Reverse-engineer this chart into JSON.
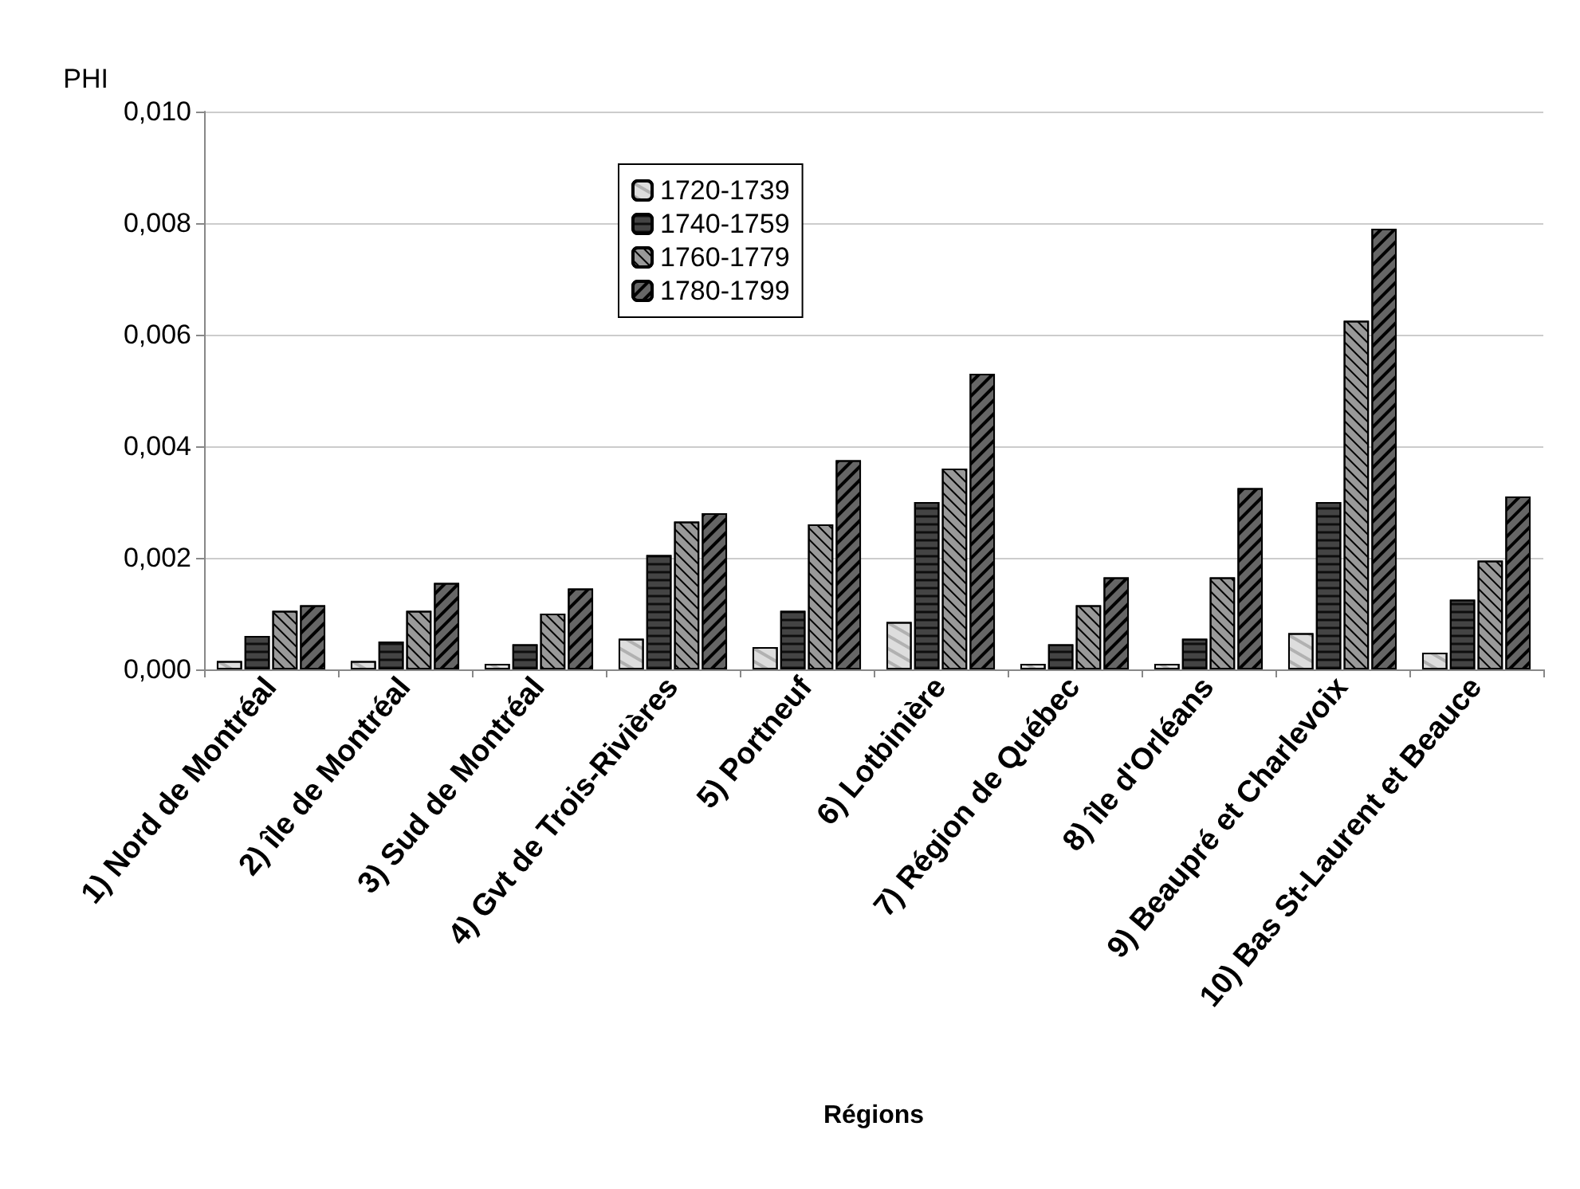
{
  "chart_data": {
    "type": "bar",
    "ylabel": "PHI",
    "xlabel": "Régions",
    "categories": [
      "1) Nord de Montréal",
      "2) île de Montréal",
      "3) Sud de Montréal",
      "4) Gvt de Trois-Rivières",
      "5) Portneuf",
      "6) Lotbinière",
      "7) Région de Québec",
      "8) île d'Orléans",
      "9) Beaupré et Charlevoix",
      "10) Bas St-Laurent et Beauce"
    ],
    "series": [
      {
        "name": "1720-1739",
        "color": "#dddddd",
        "values": [
          0.00015,
          0.00015,
          0.0001,
          0.00055,
          0.0004,
          0.00085,
          0.0001,
          0.0001,
          0.00065,
          0.0003
        ]
      },
      {
        "name": "1740-1759",
        "color": "#444444",
        "values": [
          0.0006,
          0.0005,
          0.00045,
          0.00205,
          0.00105,
          0.003,
          0.00045,
          0.00055,
          0.003,
          0.00125
        ]
      },
      {
        "name": "1760-1779",
        "color": "#999999",
        "values": [
          0.00105,
          0.00105,
          0.001,
          0.00265,
          0.0026,
          0.0036,
          0.00115,
          0.00165,
          0.00625,
          0.00195
        ]
      },
      {
        "name": "1780-1799",
        "color": "#666666",
        "values": [
          0.00115,
          0.00155,
          0.00145,
          0.0028,
          0.00375,
          0.0053,
          0.00165,
          0.00325,
          0.0079,
          0.0031
        ]
      }
    ],
    "ylim": [
      0,
      0.01
    ],
    "yticks": [
      {
        "value": 0,
        "label": "0,000"
      },
      {
        "value": 0.002,
        "label": "0,002"
      },
      {
        "value": 0.004,
        "label": "0,004"
      },
      {
        "value": 0.006,
        "label": "0,006"
      },
      {
        "value": 0.008,
        "label": "0,008"
      },
      {
        "value": 0.01,
        "label": "0,010"
      }
    ],
    "grid": "y",
    "legend": "top"
  }
}
